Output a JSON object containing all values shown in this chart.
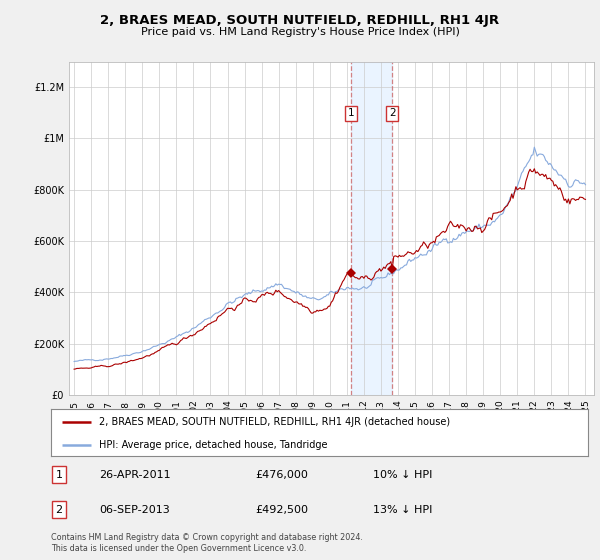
{
  "title": "2, BRAES MEAD, SOUTH NUTFIELD, REDHILL, RH1 4JR",
  "subtitle": "Price paid vs. HM Land Registry's House Price Index (HPI)",
  "legend_label_red": "2, BRAES MEAD, SOUTH NUTFIELD, REDHILL, RH1 4JR (detached house)",
  "legend_label_blue": "HPI: Average price, detached house, Tandridge",
  "footnote": "Contains HM Land Registry data © Crown copyright and database right 2024.\nThis data is licensed under the Open Government Licence v3.0.",
  "transaction1_label": "1",
  "transaction1_date": "26-APR-2011",
  "transaction1_price": "£476,000",
  "transaction1_hpi": "10% ↓ HPI",
  "transaction2_label": "2",
  "transaction2_date": "06-SEP-2013",
  "transaction2_price": "£492,500",
  "transaction2_hpi": "13% ↓ HPI",
  "red_color": "#aa0000",
  "blue_color": "#88aadd",
  "background_color": "#f0f0f0",
  "plot_bg_color": "#ffffff",
  "sale1_year": 2011.29,
  "sale1_price": 476000,
  "sale2_year": 2013.67,
  "sale2_price": 492500,
  "ylim_max": 1300000,
  "ylim_min": 0
}
